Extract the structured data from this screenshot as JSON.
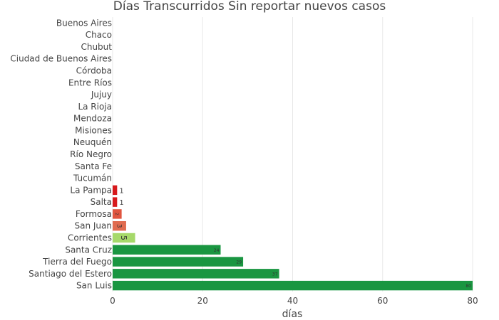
{
  "chart_data": {
    "type": "bar",
    "orientation": "horizontal",
    "title": "Días Transcurridos Sin reportar nuevos casos",
    "xlabel": "días",
    "ylabel": "",
    "xlim": [
      0,
      80
    ],
    "xticks": [
      "0",
      "20",
      "40",
      "60",
      "80"
    ],
    "grid": true,
    "categories": [
      "Buenos Aires",
      "Chaco",
      "Chubut",
      "Ciudad de Buenos Aires",
      "Córdoba",
      "Entre Ríos",
      "Jujuy",
      "La Rioja",
      "Mendoza",
      "Misiones",
      "Neuquén",
      "Río Negro",
      "Santa Fe",
      "Tucumán",
      "La Pampa",
      "Salta",
      "Formosa",
      "San Juan",
      "Corrientes",
      "Santa Cruz",
      "Tierra del Fuego",
      "Santiago del Estero",
      "San Luis"
    ],
    "values": [
      0,
      0,
      0,
      0,
      0,
      0,
      0,
      0,
      0,
      0,
      0,
      0,
      0,
      0,
      1,
      1,
      2,
      3,
      5,
      24,
      29,
      37,
      80
    ],
    "data_labels": [
      "",
      "",
      "",
      "",
      "",
      "",
      "",
      "",
      "",
      "",
      "",
      "",
      "",
      "",
      "1",
      "1",
      "2",
      "3",
      "5",
      "24",
      "29",
      "37",
      "80"
    ],
    "colors": [
      "#d7191c",
      "#d7191c",
      "#d7191c",
      "#d7191c",
      "#d7191c",
      "#d7191c",
      "#d7191c",
      "#d7191c",
      "#d7191c",
      "#d7191c",
      "#d7191c",
      "#d7191c",
      "#d7191c",
      "#d7191c",
      "#d7191c",
      "#d7191c",
      "#e0553f",
      "#e06b4f",
      "#a6d96a",
      "#1a9641",
      "#1a9641",
      "#1a9641",
      "#1a9641"
    ]
  }
}
